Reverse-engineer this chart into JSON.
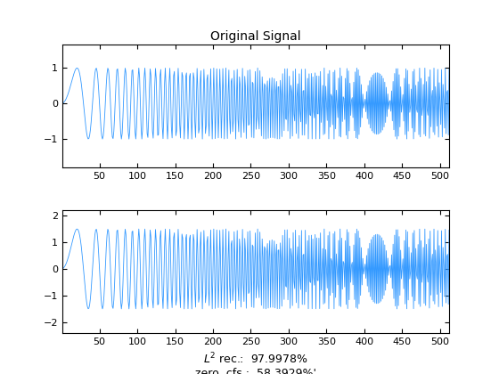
{
  "N": 512,
  "line_color": "#3399FF",
  "line_width": 0.6,
  "title1": "Original Signal",
  "xlim": [
    1,
    512
  ],
  "xticks": [
    50,
    100,
    150,
    200,
    250,
    300,
    350,
    400,
    450,
    500
  ],
  "ylim1": [
    -1.8,
    1.65
  ],
  "ylim2": [
    -2.4,
    2.2
  ],
  "yticks1": [
    -1,
    0,
    1
  ],
  "yticks2": [
    -2,
    -1,
    0,
    1,
    2
  ],
  "bg_color": "#ffffff",
  "noise_seed": 1,
  "noise_scale": 0.25,
  "title_fontsize": 10,
  "tick_fontsize": 8,
  "xlabel_fontsize": 9
}
